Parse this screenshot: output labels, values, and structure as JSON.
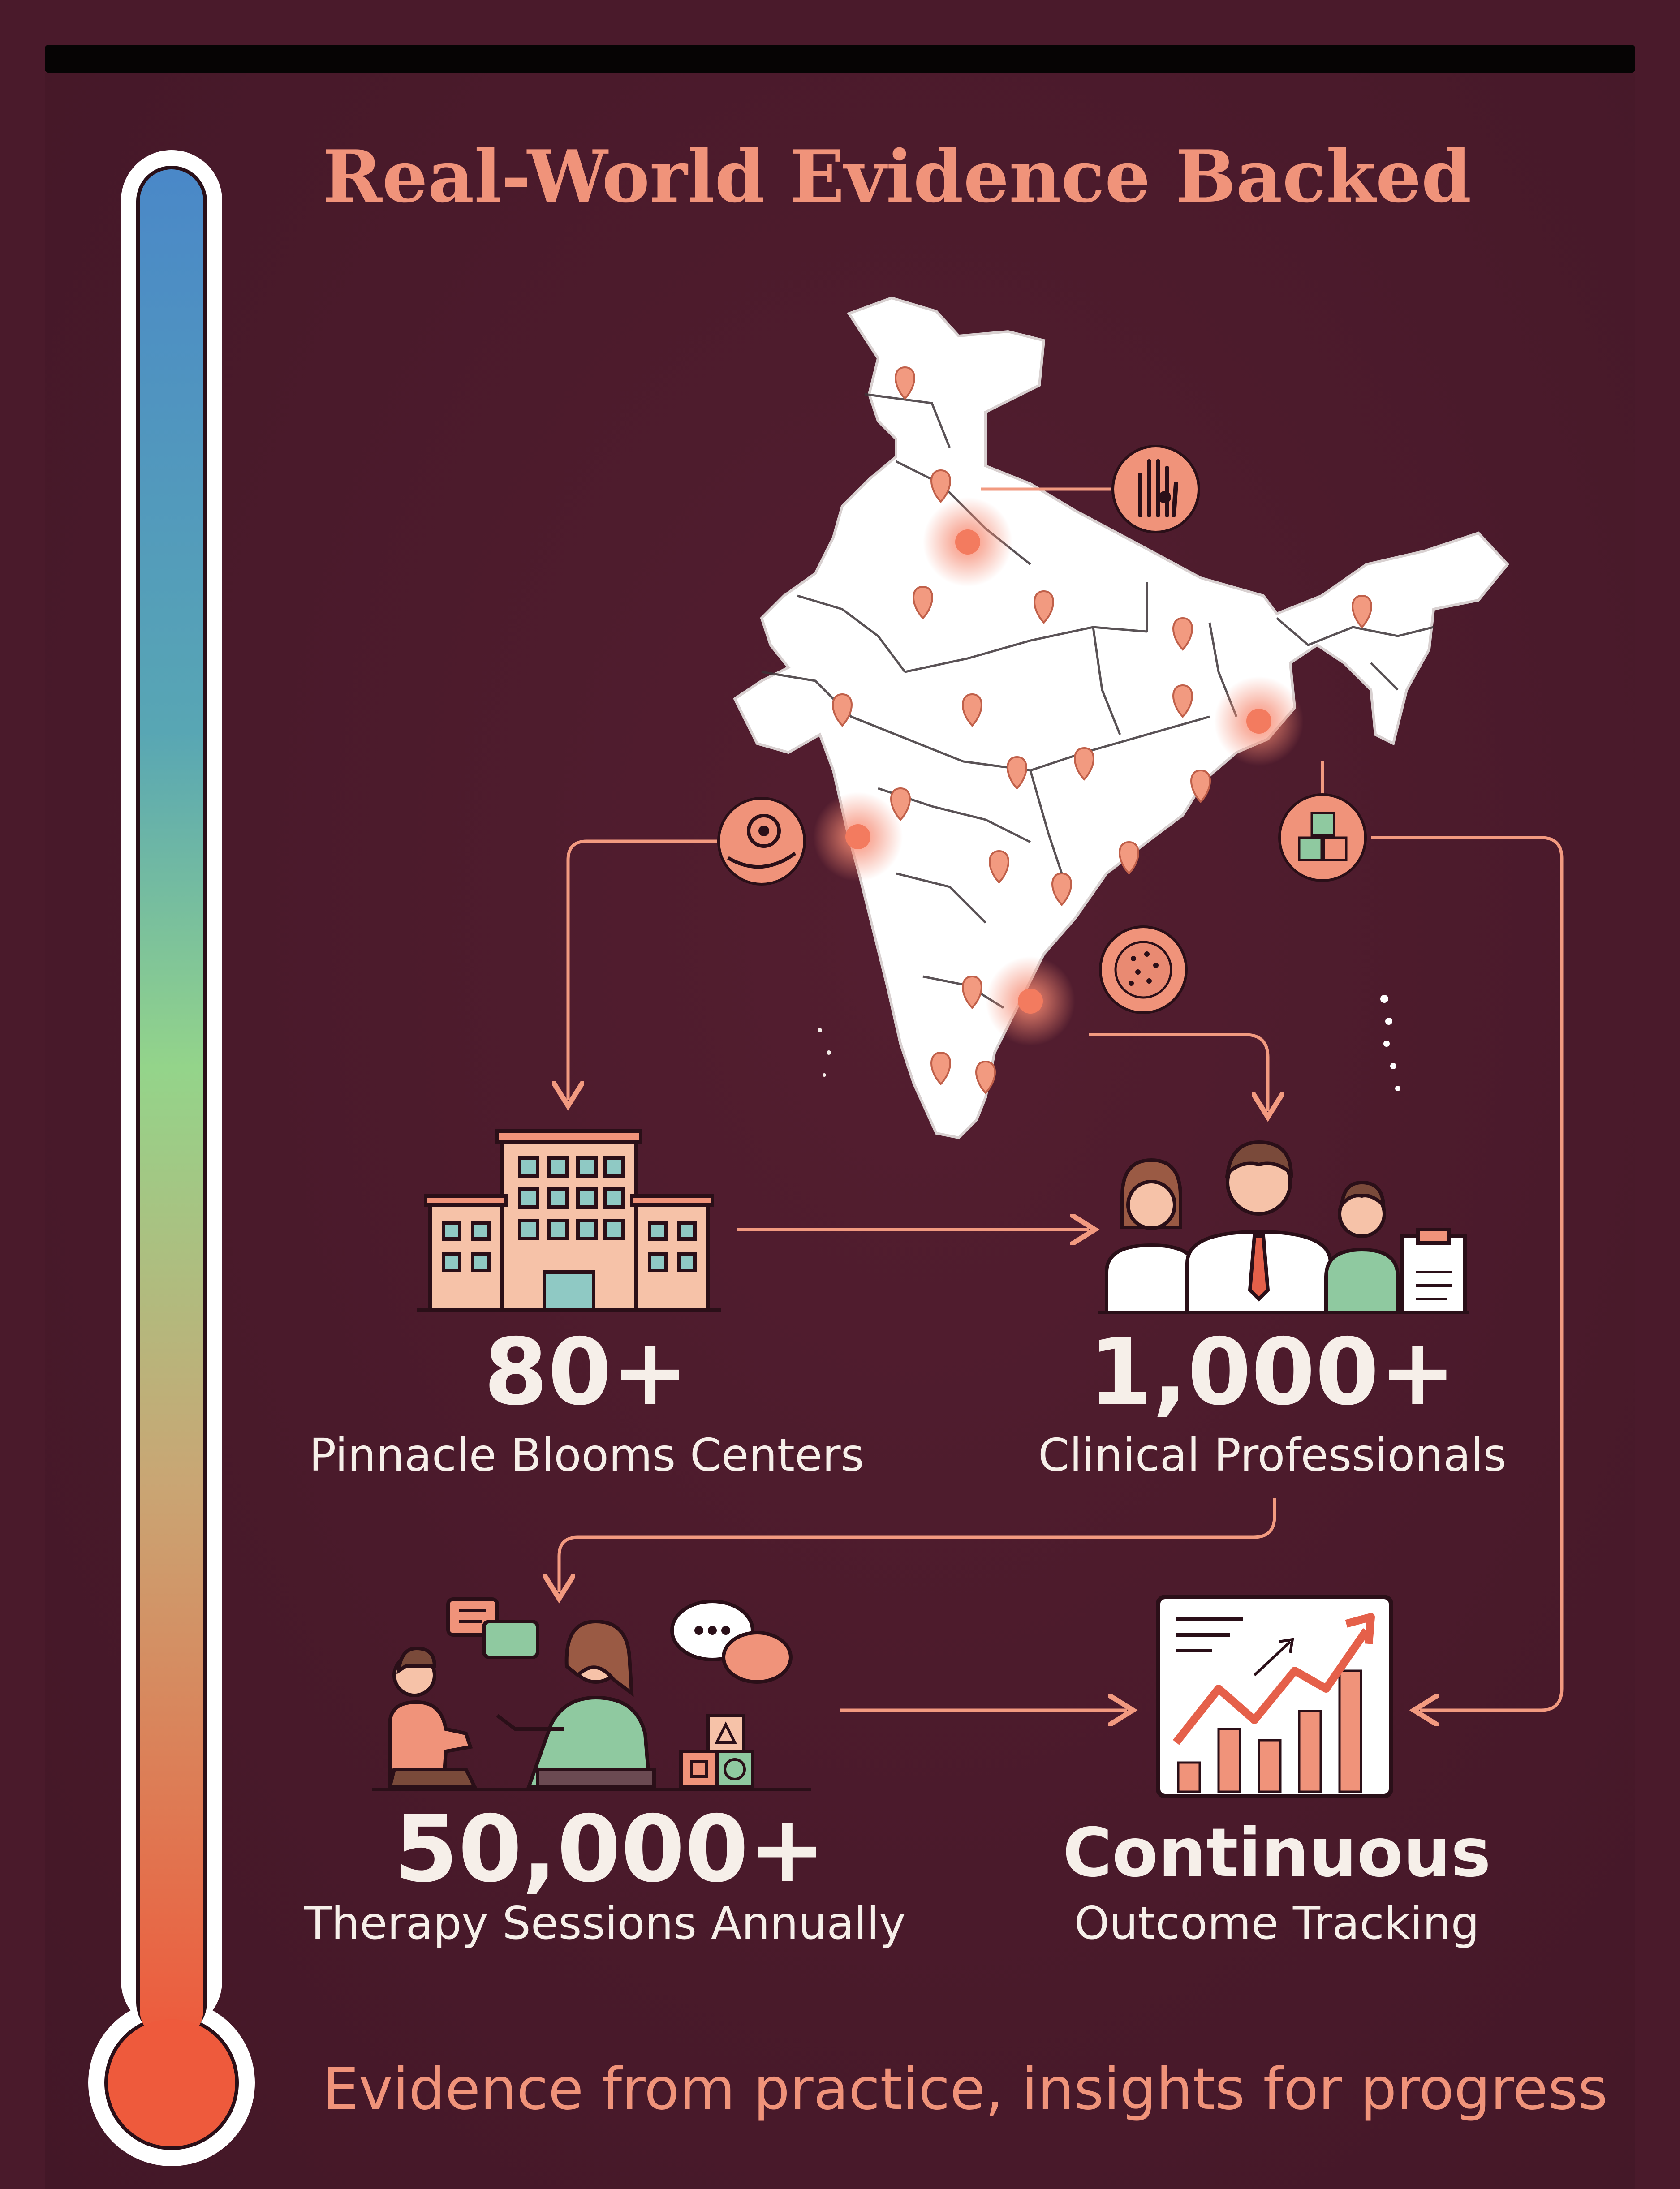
{
  "title": "Real-World Evidence Backed",
  "stats": [
    {
      "value": "80+",
      "label": "Pinnacle Blooms Centers"
    },
    {
      "value": "1,000+",
      "label": "Clinical Professionals"
    },
    {
      "value": "50,000+",
      "label": "Therapy Sessions Annually"
    },
    {
      "value": "Continuous",
      "label": "Outcome Tracking"
    }
  ],
  "footer": "Evidence from practice, insights for progress",
  "colors": {
    "background": "#4a1a2b",
    "accent": "#f0937a",
    "text": "#f6efe9",
    "thermometer_top": "#4a88c8",
    "thermometer_mid": "#94d48a",
    "thermometer_bottom": "#ee5a3c"
  }
}
